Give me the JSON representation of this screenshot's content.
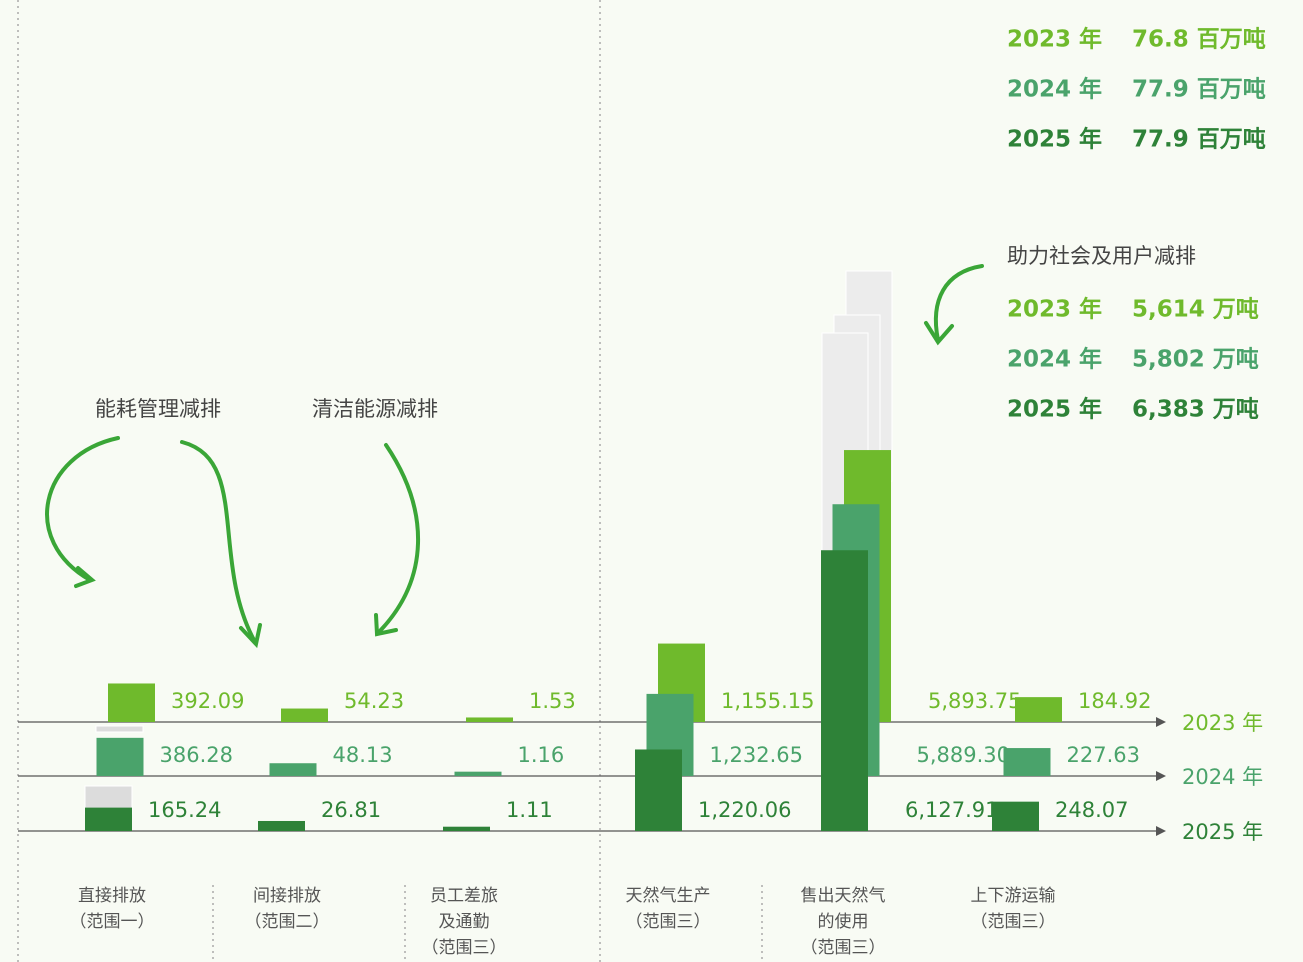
{
  "chart_data": {
    "type": "bar",
    "categories": [
      [
        "直接排放",
        "（范围一）"
      ],
      [
        "间接排放",
        "（范围二）"
      ],
      [
        "员工差旅",
        "及通勤",
        "（范围三）"
      ],
      [
        "天然气生产",
        "（范围三）"
      ],
      [
        "售出天然气",
        "的使用",
        "（范围三）"
      ],
      [
        "上下游运输",
        "（范围三）"
      ]
    ],
    "series": [
      {
        "name": "2023 年",
        "color": "#6fba2c",
        "values": [
          392.09,
          54.23,
          1.53,
          1155.15,
          5893.75,
          184.92
        ],
        "value_labels": [
          "392.09",
          "54.23",
          "1.53",
          "1,155.15",
          "5,893.75",
          "184.92"
        ]
      },
      {
        "name": "2024 年",
        "color": "#4aa36b",
        "values": [
          386.28,
          48.13,
          1.16,
          1232.65,
          5889.3,
          227.63
        ],
        "value_labels": [
          "386.28",
          "48.13",
          "1.16",
          "1,232.65",
          "5,889.30",
          "227.63"
        ]
      },
      {
        "name": "2025 年",
        "color": "#2e8238",
        "values": [
          165.24,
          26.81,
          1.11,
          1220.06,
          6127.91,
          248.07
        ],
        "value_labels": [
          "165.24",
          "26.81",
          "1.11",
          "1,220.06",
          "6,127.91",
          "248.07"
        ]
      }
    ],
    "totals": [
      "76.8 百万吨",
      "77.9 百万吨",
      "77.9 百万吨"
    ],
    "reduction_title": "助力社会及用户减排",
    "reductions": [
      "5,614 万吨",
      "5,802 万吨",
      "6,383 万吨"
    ],
    "annotations": [
      "能耗管理减排",
      "清洁能源减排"
    ]
  }
}
